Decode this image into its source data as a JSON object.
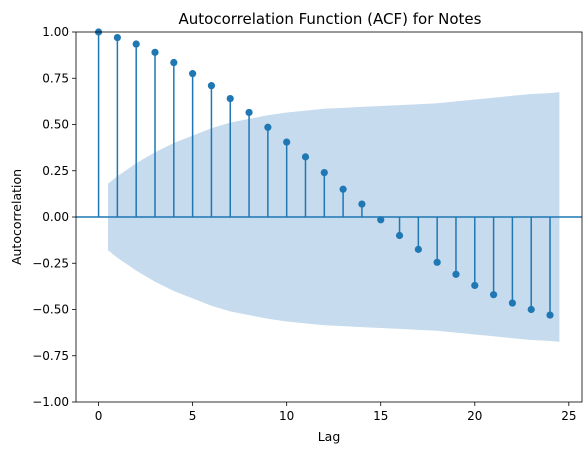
{
  "chart_data": {
    "type": "scatter",
    "subtype": "stem-acf",
    "title": "Autocorrelation Function (ACF) for Notes",
    "xlabel": "Lag",
    "ylabel": "Autocorrelation",
    "xlim": [
      -1.2,
      25.7
    ],
    "ylim": [
      -1.0,
      1.0
    ],
    "x_ticks": [
      0,
      5,
      10,
      15,
      20,
      25
    ],
    "y_ticks": [
      -1.0,
      -0.75,
      -0.5,
      -0.25,
      0.0,
      0.25,
      0.5,
      0.75,
      1.0
    ],
    "x_tick_labels": [
      "0",
      "5",
      "10",
      "15",
      "20",
      "25"
    ],
    "y_tick_labels": [
      "−1.00",
      "−0.75",
      "−0.50",
      "−0.25",
      "0.00",
      "0.25",
      "0.50",
      "0.75",
      "1.00"
    ],
    "grid": false,
    "colors": {
      "stem": "#1f77b4",
      "band": "#c6dbed",
      "zero_line": "#1f77b4"
    },
    "lags": [
      0,
      1,
      2,
      3,
      4,
      5,
      6,
      7,
      8,
      9,
      10,
      11,
      12,
      13,
      14,
      15,
      16,
      17,
      18,
      19,
      20,
      21,
      22,
      23,
      24
    ],
    "acf": [
      1.0,
      0.97,
      0.935,
      0.89,
      0.835,
      0.775,
      0.71,
      0.64,
      0.565,
      0.485,
      0.405,
      0.325,
      0.24,
      0.15,
      0.07,
      -0.015,
      -0.1,
      -0.175,
      -0.245,
      -0.31,
      -0.37,
      -0.42,
      -0.465,
      -0.5,
      -0.53
    ],
    "confidence_band": {
      "x": [
        0.5,
        1,
        2,
        3,
        4,
        5,
        6,
        7,
        8,
        9,
        10,
        11,
        12,
        13,
        14,
        15,
        16,
        17,
        18,
        19,
        20,
        21,
        22,
        23,
        24,
        24.5
      ],
      "upper": [
        0.18,
        0.22,
        0.29,
        0.35,
        0.4,
        0.44,
        0.48,
        0.51,
        0.53,
        0.55,
        0.565,
        0.575,
        0.585,
        0.59,
        0.595,
        0.6,
        0.605,
        0.61,
        0.615,
        0.625,
        0.635,
        0.645,
        0.655,
        0.665,
        0.67,
        0.675
      ]
    }
  }
}
